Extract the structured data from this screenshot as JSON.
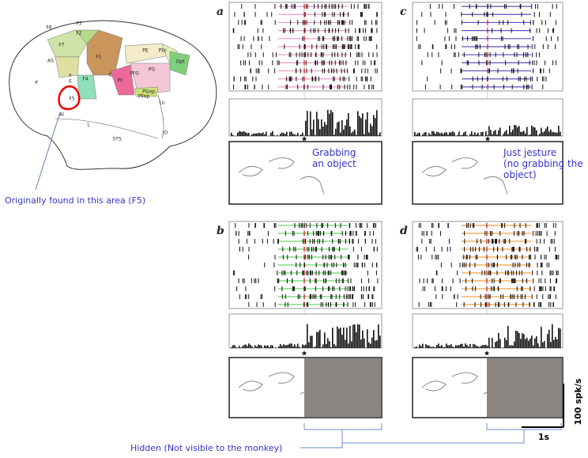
{
  "brain": {
    "labels": [
      "F6",
      "F3",
      "F2",
      "F7",
      "AS",
      "F1",
      "C",
      "PE",
      "PEc",
      "Opt",
      "PG",
      "PFG",
      "PF",
      "PGop",
      "PFop",
      "F4",
      "F",
      "E",
      "F5",
      "P",
      "Al",
      "L",
      "Lu",
      "IO",
      "STS"
    ]
  },
  "annotation": "Originally found in this area (F5)",
  "panels": [
    {
      "letter": "a",
      "caption": [
        "Grabbing",
        "an object"
      ],
      "star": "★"
    },
    {
      "letter": "c",
      "caption": [
        "Just jesture",
        "(no grabbing the",
        "object)"
      ],
      "star": "★"
    },
    {
      "letter": "b",
      "star": "★"
    },
    {
      "letter": "d",
      "star": "★"
    }
  ],
  "hidden": "Hidden (Not visible to the monkey)",
  "scale": {
    "rate": "100 spk/s",
    "time": "1s"
  }
}
